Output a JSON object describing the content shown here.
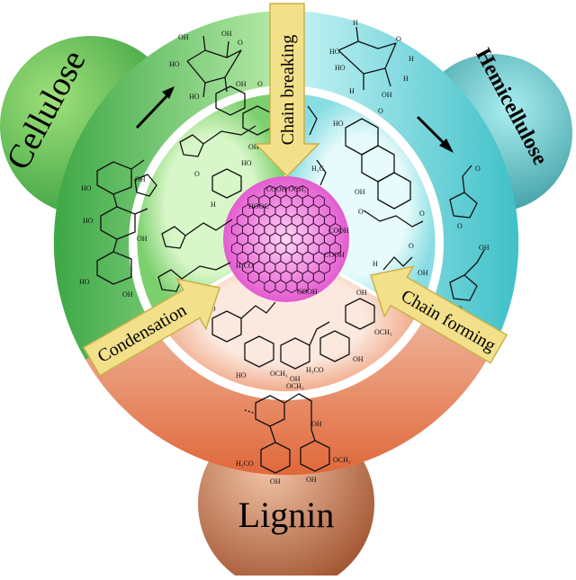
{
  "sources": {
    "cellulose": {
      "label": "Cellulose",
      "color": "#3aa640"
    },
    "hemicellulose": {
      "label": "Hemicellulose",
      "color": "#2a9aa0"
    },
    "lignin": {
      "label": "Lignin",
      "color": "#b5633a"
    }
  },
  "processes": {
    "chain_breaking": "Chain breaking",
    "chain_forming": "Chain forming",
    "condensation": "Condensation"
  },
  "structure_labels": {
    "oh": "OH",
    "ho": "HO",
    "h": "H",
    "o": "O",
    "och3": "OCH₃",
    "h3co": "H₃CO",
    "h3c": "H₃C",
    "cooh": "COOH",
    "hooc": "HOOC",
    "cooh_och3": "COOH OCH₃",
    "h3co_cooh": "H₃CO  COOH"
  },
  "colors": {
    "arrow_fill": "#f3e08a",
    "arrow_stroke": "#c9b14a",
    "core": "#e05fd0"
  }
}
